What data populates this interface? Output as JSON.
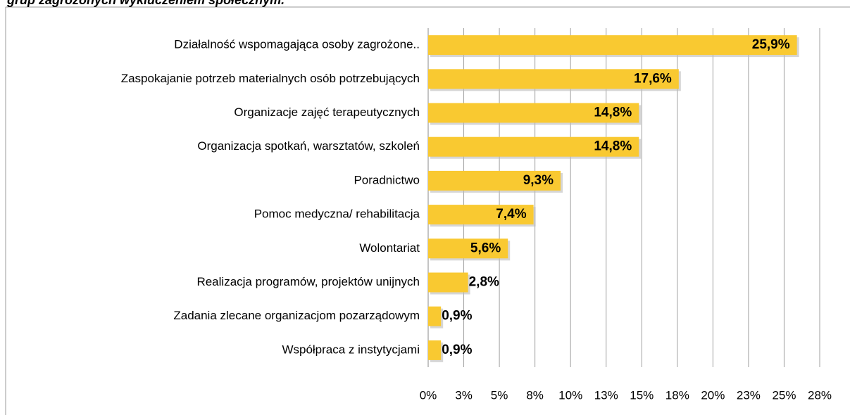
{
  "chart_data": {
    "type": "bar",
    "orientation": "horizontal",
    "title": "grup zagrożonych wykluczeniem społecznym.",
    "categories": [
      "Działalność wspomagająca osoby zagrożone..",
      "Zaspokajanie potrzeb materialnych osób potrzebujących",
      "Organizacje zajęć terapeutycznych",
      "Organizacja spotkań, warsztatów, szkoleń",
      "Poradnictwo",
      "Pomoc medyczna/ rehabilitacja",
      "Wolontariat",
      "Realizacja programów, projektów unijnych",
      "Zadania zlecane organizacjom pozarządowym",
      "Współpraca z instytycjami"
    ],
    "values": [
      25.9,
      17.6,
      14.8,
      14.8,
      9.3,
      7.4,
      5.6,
      2.8,
      0.9,
      0.9
    ],
    "value_labels": [
      "25,9%",
      "17,6%",
      "14,8%",
      "14,8%",
      "9,3%",
      "7,4%",
      "5,6%",
      "2,8%",
      "0,9%",
      "0,9%"
    ],
    "color": "#f9c931",
    "xlim": [
      0,
      27.5
    ],
    "xticks": [
      {
        "value": 0,
        "label": "0%"
      },
      {
        "value": 2.5,
        "label": "3%"
      },
      {
        "value": 5,
        "label": "5%"
      },
      {
        "value": 7.5,
        "label": "8%"
      },
      {
        "value": 10,
        "label": "10%"
      },
      {
        "value": 12.5,
        "label": "13%"
      },
      {
        "value": 15,
        "label": "15%"
      },
      {
        "value": 17.5,
        "label": "18%"
      },
      {
        "value": 20,
        "label": "20%"
      },
      {
        "value": 22.5,
        "label": "23%"
      },
      {
        "value": 25,
        "label": "25%"
      },
      {
        "value": 27.5,
        "label": "28%"
      }
    ],
    "grid": true
  }
}
